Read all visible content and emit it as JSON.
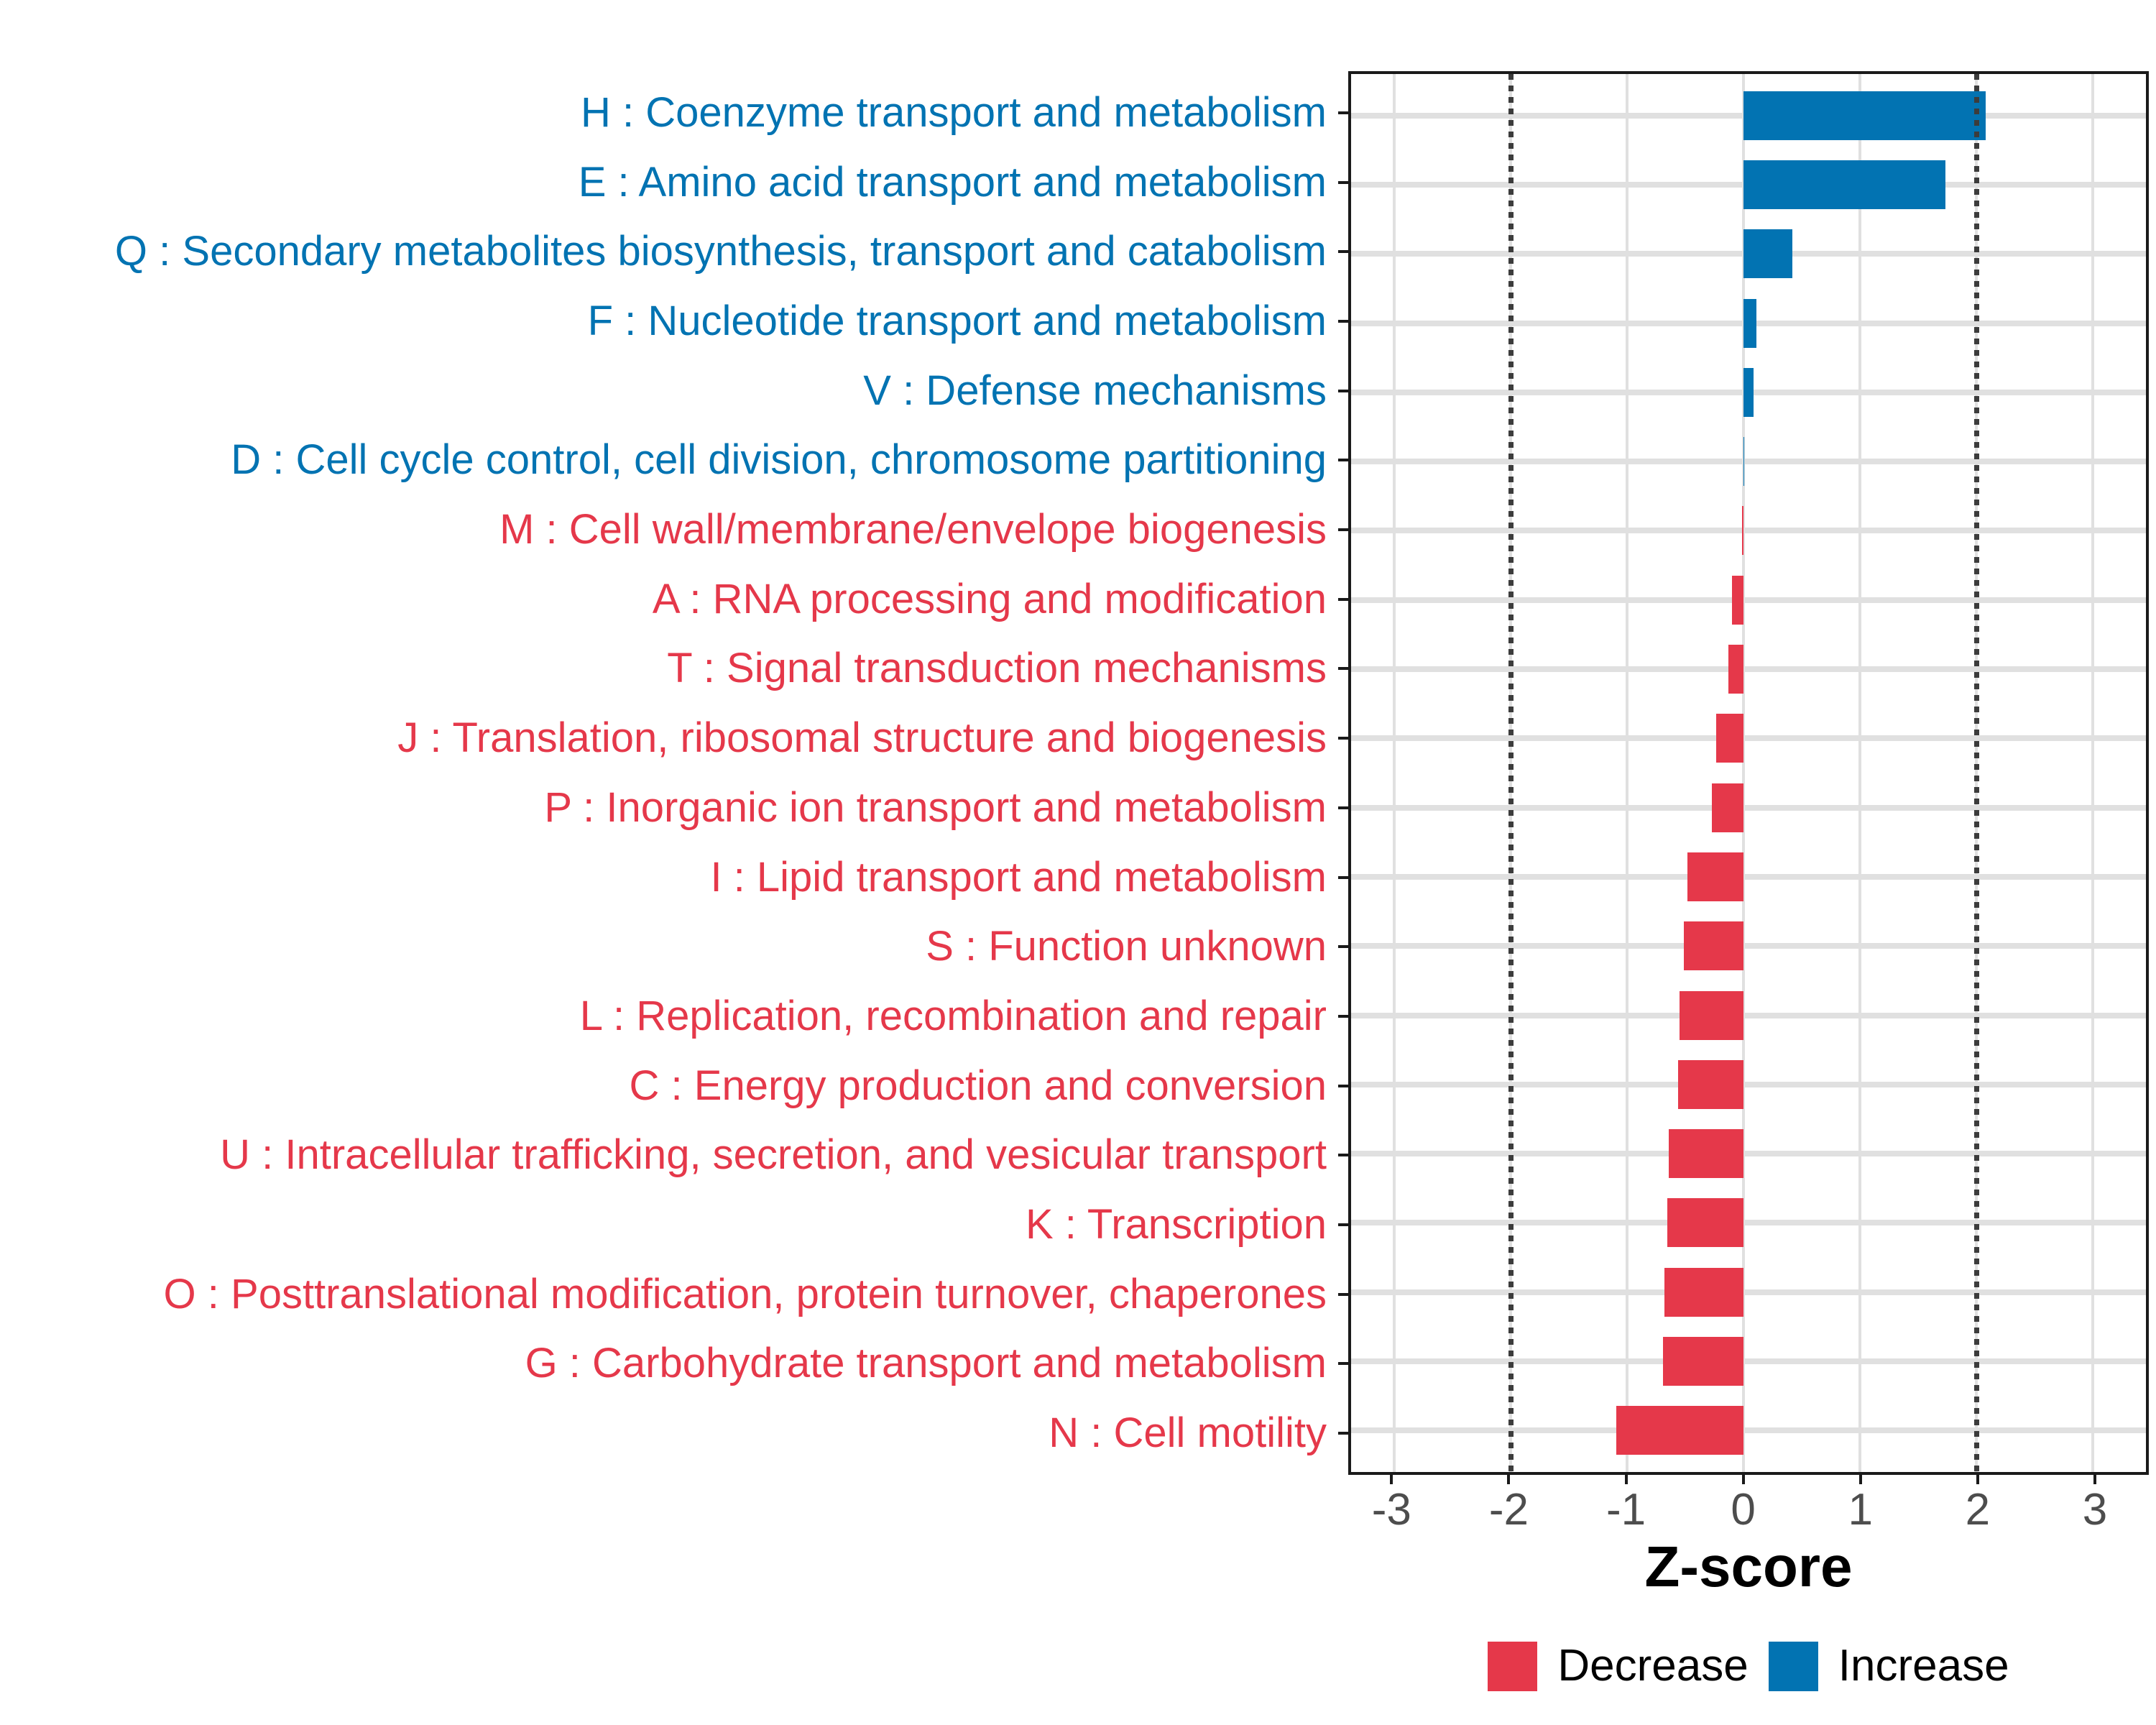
{
  "chart_data": {
    "type": "bar",
    "orientation": "horizontal",
    "xlabel": "Z-score",
    "ylabel": "",
    "x_axis": {
      "min": -3.37,
      "max": 3.46,
      "ticks": [
        -3,
        -2,
        -1,
        0,
        1,
        2,
        3
      ],
      "tick_labels": [
        "-3",
        "-2",
        "-1",
        "0",
        "1",
        "2",
        "3"
      ]
    },
    "reference_lines": [
      -2,
      2
    ],
    "grid": {
      "x_major": true,
      "y_major": true,
      "legend_position": "bottom"
    },
    "categories": [
      {
        "label": "H : Coenzyme transport and metabolism",
        "value": 2.08,
        "group": "Increase"
      },
      {
        "label": "E : Amino acid transport and metabolism",
        "value": 1.74,
        "group": "Increase"
      },
      {
        "label": "Q : Secondary metabolites biosynthesis, transport and catabolism",
        "value": 0.42,
        "group": "Increase"
      },
      {
        "label": "F : Nucleotide transport and metabolism",
        "value": 0.11,
        "group": "Increase"
      },
      {
        "label": "V : Defense mechanisms",
        "value": 0.09,
        "group": "Increase"
      },
      {
        "label": "D : Cell cycle control, cell division, chromosome partitioning",
        "value": 0.01,
        "group": "Increase"
      },
      {
        "label": "M : Cell wall/membrane/envelope biogenesis",
        "value": -0.01,
        "group": "Decrease"
      },
      {
        "label": "A : RNA processing and modification",
        "value": -0.1,
        "group": "Decrease"
      },
      {
        "label": "T : Signal transduction mechanisms",
        "value": -0.13,
        "group": "Decrease"
      },
      {
        "label": "J : Translation, ribosomal structure and biogenesis",
        "value": -0.23,
        "group": "Decrease"
      },
      {
        "label": "P : Inorganic ion transport and metabolism",
        "value": -0.27,
        "group": "Decrease"
      },
      {
        "label": "I : Lipid transport and metabolism",
        "value": -0.48,
        "group": "Decrease"
      },
      {
        "label": "S : Function unknown",
        "value": -0.51,
        "group": "Decrease"
      },
      {
        "label": "L : Replication, recombination and repair",
        "value": -0.55,
        "group": "Decrease"
      },
      {
        "label": "C : Energy production and conversion",
        "value": -0.56,
        "group": "Decrease"
      },
      {
        "label": "U : Intracellular trafficking, secretion, and vesicular transport",
        "value": -0.64,
        "group": "Decrease"
      },
      {
        "label": "K : Transcription",
        "value": -0.65,
        "group": "Decrease"
      },
      {
        "label": "O : Posttranslational modification, protein turnover, chaperones",
        "value": -0.68,
        "group": "Decrease"
      },
      {
        "label": "G : Carbohydrate transport and metabolism",
        "value": -0.69,
        "group": "Decrease"
      },
      {
        "label": "N : Cell motility",
        "value": -1.09,
        "group": "Decrease"
      }
    ],
    "legend": {
      "entries": [
        {
          "label": "Decrease",
          "color": "#E5384A"
        },
        {
          "label": "Increase",
          "color": "#0273B2"
        }
      ]
    },
    "colors": {
      "Increase": "#0273B2",
      "Decrease": "#E5384A",
      "grid": "#E0E0E0",
      "reference_line": "#3C3C3C",
      "axis_tick_text": "#4D4D4D",
      "axis_line": "#1A1A1A"
    }
  }
}
